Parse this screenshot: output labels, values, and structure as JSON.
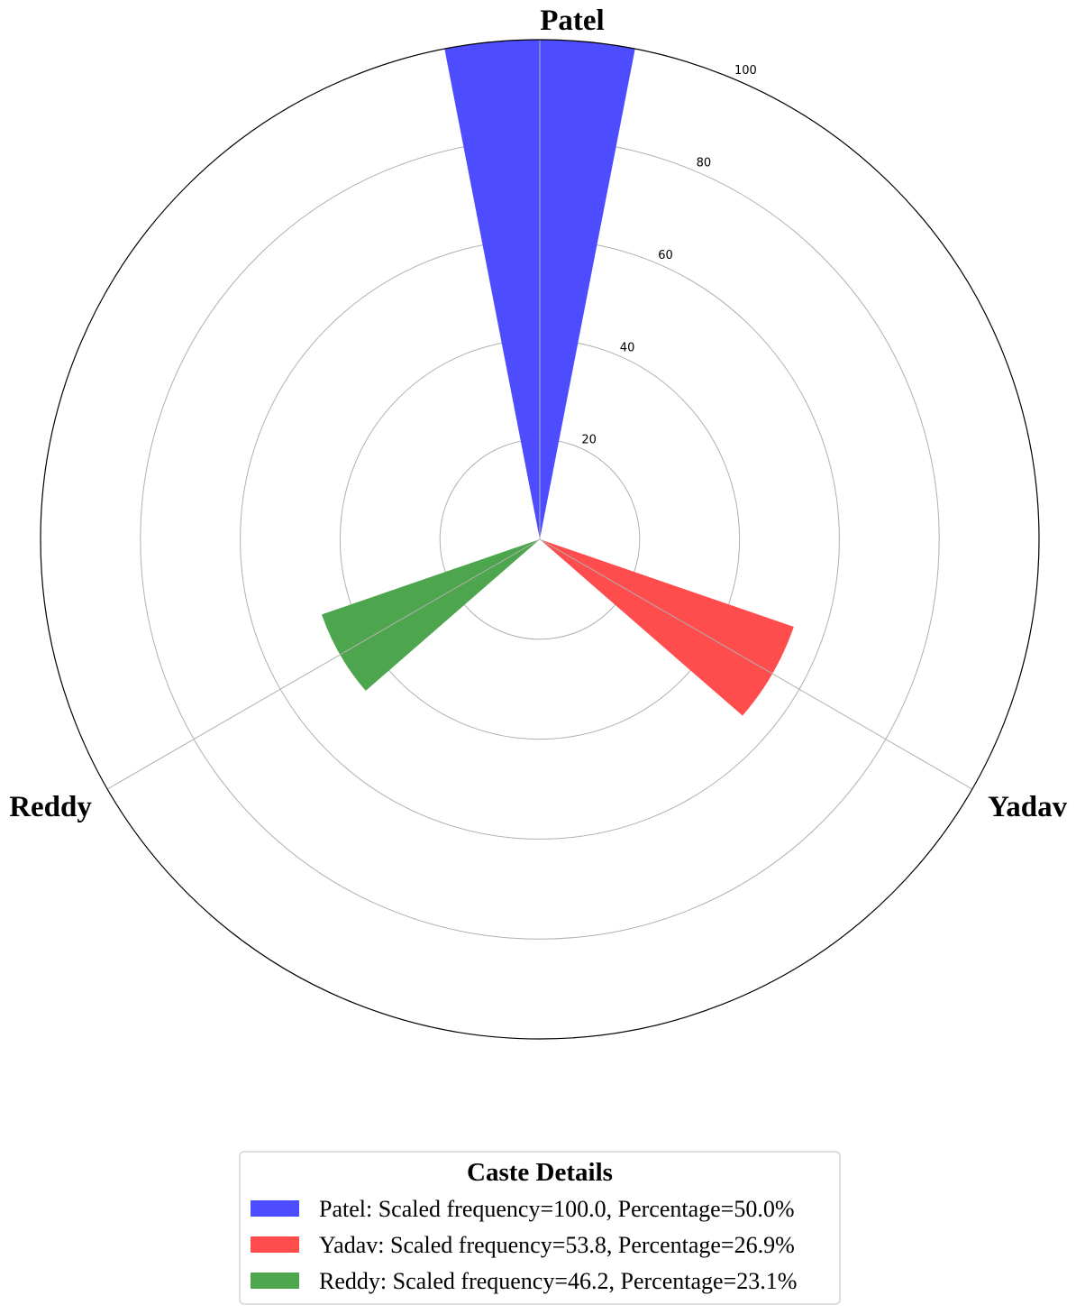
{
  "chart_data": {
    "type": "bar",
    "subtype": "polar",
    "categories": [
      "Patel",
      "Yadav",
      "Reddy"
    ],
    "values": [
      100.0,
      53.8,
      46.2
    ],
    "percentages": [
      50.0,
      26.9,
      23.1
    ],
    "colors": [
      "#4d4dff",
      "#ff4d4d",
      "#4da64d"
    ],
    "rlim": [
      0,
      100
    ],
    "rticks": [
      20,
      40,
      60,
      80,
      100
    ],
    "grid": true,
    "legend": {
      "title": "Caste Details",
      "position": "bottom-center",
      "entries": [
        "Patel: Scaled frequency=100.0, Percentage=50.0%",
        "Yadav: Scaled frequency=53.8, Percentage=26.9%",
        "Reddy: Scaled frequency=46.2, Percentage=23.1%"
      ]
    }
  }
}
